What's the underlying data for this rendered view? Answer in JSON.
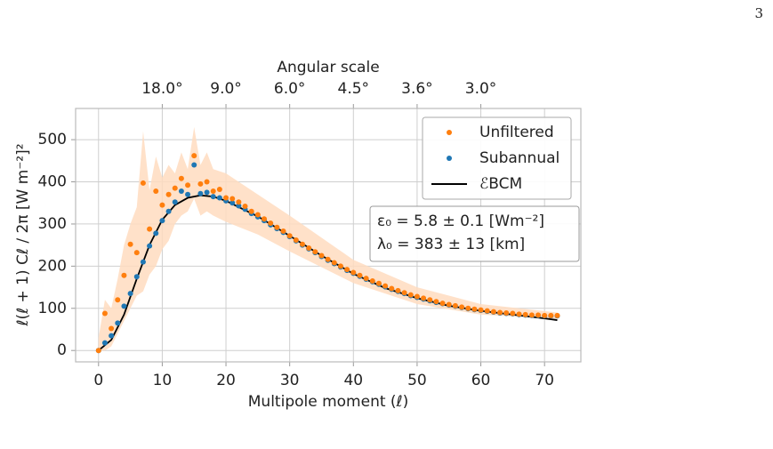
{
  "page_number": "3",
  "chart_data": {
    "type": "scatter",
    "xlabel": "Multipole moment (ℓ)",
    "ylabel": "ℓ(ℓ + 1) Cℓ / 2π  [W m⁻²]²",
    "x2label": "Angular scale",
    "xlim": [
      -3.6,
      75.7
    ],
    "ylim": [
      -27,
      574
    ],
    "xticks": [
      0,
      10,
      20,
      30,
      40,
      50,
      60,
      70
    ],
    "yticks": [
      0,
      100,
      200,
      300,
      400,
      500
    ],
    "x2ticks": [
      {
        "value": 10,
        "label": "18.0°"
      },
      {
        "value": 20,
        "label": "9.0°"
      },
      {
        "value": 30,
        "label": "6.0°"
      },
      {
        "value": 40,
        "label": "4.5°"
      },
      {
        "value": 50,
        "label": "3.6°"
      },
      {
        "value": 60,
        "label": "3.0°"
      }
    ],
    "grid": true,
    "legend": "upper right",
    "band": {
      "color": "#ffdcbf",
      "x": [
        0,
        1,
        2,
        3,
        4,
        5,
        6,
        7,
        8,
        9,
        10,
        11,
        12,
        13,
        14,
        15,
        16,
        17,
        18,
        20,
        25,
        30,
        40,
        50,
        60,
        72
      ],
      "upper": [
        30,
        120,
        100,
        170,
        250,
        300,
        340,
        520,
        380,
        460,
        410,
        440,
        420,
        470,
        430,
        530,
        440,
        470,
        430,
        420,
        370,
        320,
        215,
        150,
        110,
        90
      ],
      "lower": [
        0,
        0,
        10,
        40,
        70,
        100,
        130,
        140,
        180,
        200,
        240,
        260,
        300,
        320,
        330,
        360,
        320,
        330,
        320,
        305,
        275,
        235,
        160,
        110,
        85,
        75
      ]
    },
    "series": [
      {
        "name": "Unfiltered",
        "type": "scatter",
        "color": "#ff7f0e",
        "x": [
          0,
          1,
          2,
          3,
          4,
          5,
          6,
          7,
          8,
          9,
          10,
          11,
          12,
          13,
          14,
          15,
          16,
          17,
          18,
          19,
          20,
          21,
          22,
          23,
          24,
          25,
          26,
          27,
          28,
          29,
          30,
          31,
          32,
          33,
          34,
          35,
          36,
          37,
          38,
          39,
          40,
          41,
          42,
          43,
          44,
          45,
          46,
          47,
          48,
          49,
          50,
          51,
          52,
          53,
          54,
          55,
          56,
          57,
          58,
          59,
          60,
          61,
          62,
          63,
          64,
          65,
          66,
          67,
          68,
          69,
          70,
          71,
          72
        ],
        "values": [
          0,
          88,
          52,
          120,
          178,
          252,
          232,
          397,
          288,
          378,
          345,
          370,
          385,
          408,
          392,
          462,
          395,
          400,
          378,
          382,
          362,
          360,
          352,
          342,
          330,
          322,
          312,
          302,
          292,
          283,
          272,
          262,
          252,
          243,
          234,
          225,
          216,
          208,
          200,
          192,
          185,
          178,
          171,
          165,
          159,
          153,
          147,
          142,
          137,
          132,
          128,
          124,
          120,
          116,
          112,
          109,
          106,
          103,
          100,
          98,
          96,
          94,
          92,
          90,
          89,
          88,
          86,
          85,
          84,
          84,
          83,
          83,
          83
        ]
      },
      {
        "name": "Subannual",
        "type": "scatter",
        "color": "#1f77b4",
        "x": [
          0,
          1,
          2,
          3,
          4,
          5,
          6,
          7,
          8,
          9,
          10,
          11,
          12,
          13,
          14,
          15,
          16,
          17,
          18,
          19,
          20,
          21,
          22,
          23,
          24,
          25,
          26,
          27,
          28,
          29,
          30,
          31,
          32,
          33,
          34,
          35,
          36,
          37,
          38,
          39,
          40,
          41,
          42,
          43,
          44,
          45,
          46,
          47,
          48,
          49,
          50,
          51,
          52,
          53,
          54,
          55,
          56,
          57,
          58,
          59,
          60,
          61,
          62,
          63,
          64,
          65,
          66,
          67,
          68,
          69,
          70,
          71,
          72
        ],
        "values": [
          0,
          18,
          35,
          65,
          105,
          135,
          175,
          210,
          248,
          278,
          308,
          330,
          352,
          378,
          370,
          440,
          372,
          375,
          365,
          362,
          355,
          350,
          343,
          335,
          325,
          317,
          308,
          298,
          289,
          280,
          270,
          260,
          250,
          241,
          232,
          223,
          214,
          206,
          198,
          190,
          183,
          176,
          169,
          163,
          157,
          151,
          145,
          140,
          135,
          130,
          126,
          122,
          118,
          114,
          111,
          108,
          105,
          102,
          99,
          97,
          95,
          93,
          91,
          89,
          88,
          87,
          85,
          84,
          83,
          83,
          82,
          82,
          82
        ]
      },
      {
        "name": "ℰBCM",
        "type": "line",
        "color": "#000000",
        "x": [
          0,
          2,
          4,
          6,
          8,
          10,
          12,
          14,
          16,
          18,
          20,
          25,
          30,
          35,
          40,
          45,
          50,
          55,
          60,
          65,
          70,
          72
        ],
        "values": [
          0,
          25,
          85,
          170,
          250,
          310,
          345,
          362,
          368,
          365,
          355,
          318,
          272,
          225,
          182,
          148,
          124,
          106,
          94,
          85,
          76,
          72
        ]
      }
    ],
    "annotation": [
      "ε₀ = 5.8 ± 0.1 [Wm⁻²]",
      "λ₀ = 383 ± 13 [km]"
    ]
  }
}
